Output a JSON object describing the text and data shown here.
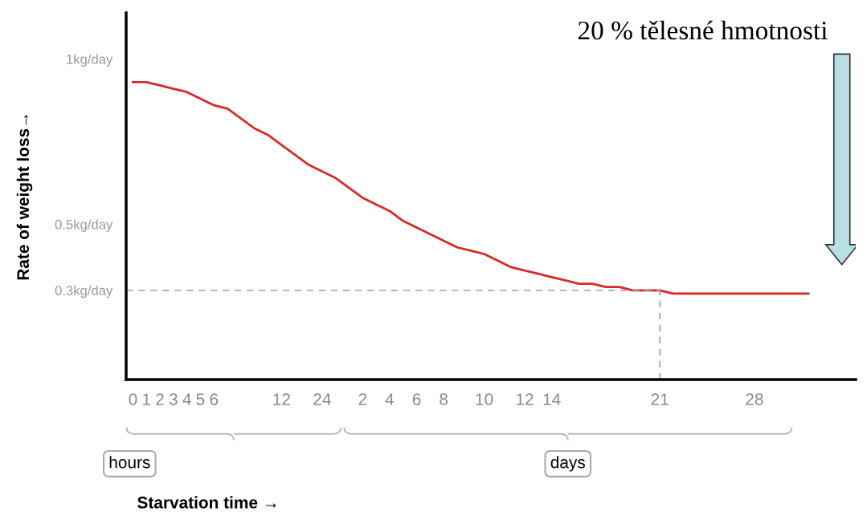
{
  "chart_data": {
    "type": "line",
    "ylabel": "Rate of weight loss→",
    "annotations": [
      "20 % tělesné hmotnosti",
      "hours",
      "days",
      "Starvation time →"
    ],
    "categories": [
      "0",
      "1",
      "2",
      "3",
      "4",
      "5",
      "6",
      null,
      null,
      null,
      null,
      "12",
      null,
      null,
      "24",
      null,
      null,
      "2",
      null,
      "4",
      null,
      "6",
      null,
      "8",
      null,
      null,
      "10",
      null,
      null,
      "12",
      null,
      "14",
      null,
      null,
      null,
      null,
      null,
      null,
      null,
      "21",
      null,
      null,
      null,
      null,
      null,
      null,
      "28",
      null,
      null,
      null,
      null,
      null,
      null,
      null
    ],
    "series": [
      {
        "color": "#d62a2a",
        "values": [
          0.93,
          0.93,
          0.92,
          0.91,
          0.9,
          0.88,
          0.86,
          0.85,
          0.82,
          0.79,
          0.77,
          0.74,
          0.71,
          0.68,
          0.66,
          0.64,
          0.61,
          0.58,
          0.56,
          0.54,
          0.51,
          0.49,
          0.47,
          0.45,
          0.43,
          0.42,
          0.41,
          0.39,
          0.37,
          0.36,
          0.35,
          0.34,
          0.33,
          0.32,
          0.32,
          0.31,
          0.31,
          0.3,
          0.3,
          0.3,
          0.29,
          0.29,
          0.29,
          0.29,
          0.29,
          0.29,
          0.29,
          0.29,
          0.29,
          0.29,
          0.29,
          null,
          null,
          null
        ]
      }
    ],
    "ylim": [
      0.03,
      1.14
    ],
    "yticks": [
      {
        "value": 1.0,
        "label": "1kg/day"
      },
      {
        "value": 0.5,
        "label": "0.5kg/day"
      },
      {
        "value": 0.3,
        "label": "0.3kg/day"
      }
    ],
    "ref_lines": [
      {
        "axis": "y",
        "value": 0.3,
        "color": "#a0a0a0",
        "line_style": "dashed"
      },
      {
        "axis": "x",
        "value": "21",
        "color": "#a0a0a0",
        "line_style": "dashed"
      }
    ],
    "grid": false,
    "legend": false
  }
}
